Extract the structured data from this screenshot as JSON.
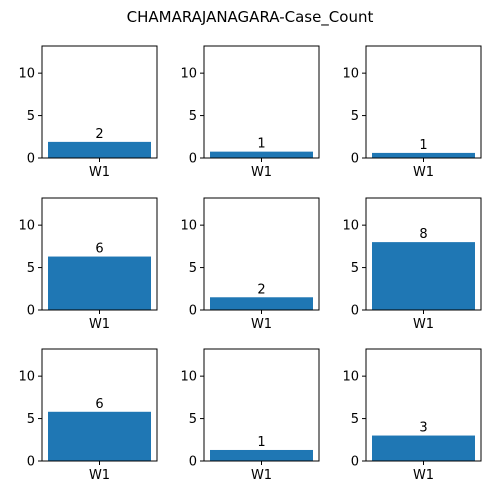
{
  "chart_data": {
    "type": "bar",
    "title": "CHAMARAJANAGARA-Case_Count",
    "bar_color": "#1f77b4",
    "ylim": [
      0,
      13.2
    ],
    "yticks": [
      0,
      5,
      10
    ],
    "grid": false,
    "subplots": [
      {
        "categories": [
          "W1"
        ],
        "values": [
          1.9
        ],
        "labels": [
          "2"
        ]
      },
      {
        "categories": [
          "W1"
        ],
        "values": [
          0.75
        ],
        "labels": [
          "1"
        ]
      },
      {
        "categories": [
          "W1"
        ],
        "values": [
          0.6
        ],
        "labels": [
          "1"
        ]
      },
      {
        "categories": [
          "W1"
        ],
        "values": [
          6.3
        ],
        "labels": [
          "6"
        ]
      },
      {
        "categories": [
          "W1"
        ],
        "values": [
          1.5
        ],
        "labels": [
          "2"
        ]
      },
      {
        "categories": [
          "W1"
        ],
        "values": [
          8.0
        ],
        "labels": [
          "8"
        ]
      },
      {
        "categories": [
          "W1"
        ],
        "values": [
          5.8
        ],
        "labels": [
          "6"
        ]
      },
      {
        "categories": [
          "W1"
        ],
        "values": [
          1.3
        ],
        "labels": [
          "1"
        ]
      },
      {
        "categories": [
          "W1"
        ],
        "values": [
          3.0
        ],
        "labels": [
          "3"
        ]
      }
    ]
  }
}
